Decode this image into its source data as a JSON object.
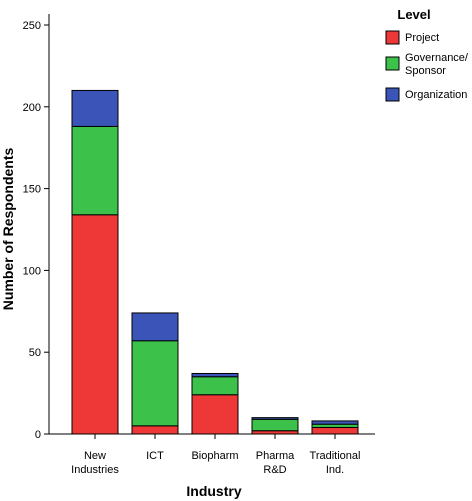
{
  "chart_data": {
    "type": "bar",
    "stacked": true,
    "xlabel": "Industry",
    "ylabel": "Number of Respondents",
    "ylim": [
      0,
      260
    ],
    "yticks": [
      0,
      50,
      100,
      150,
      200,
      250
    ],
    "grid": false,
    "legend_placement": "top-right",
    "categories": [
      [
        "New",
        "Industries"
      ],
      [
        "ICT"
      ],
      [
        "Biopharm"
      ],
      [
        "Pharma",
        "R&D"
      ],
      [
        "Traditional",
        "Ind."
      ]
    ],
    "legend": {
      "title": "Level",
      "entries": [
        {
          "series": 0,
          "lines": [
            "Project"
          ]
        },
        {
          "series": 1,
          "lines": [
            "Governance/",
            "Sponsor"
          ]
        },
        {
          "series": 2,
          "lines": [
            "Organization"
          ]
        }
      ]
    },
    "series": [
      {
        "name": "Project",
        "color": "#ee3838",
        "values": [
          134,
          5,
          24,
          2,
          4
        ]
      },
      {
        "name": "Governance/Sponsor",
        "color": "#3cc24a",
        "values": [
          54,
          52,
          11,
          7,
          2
        ]
      },
      {
        "name": "Organization",
        "color": "#3b54b8",
        "values": [
          22,
          17,
          2,
          1,
          2
        ]
      }
    ]
  }
}
